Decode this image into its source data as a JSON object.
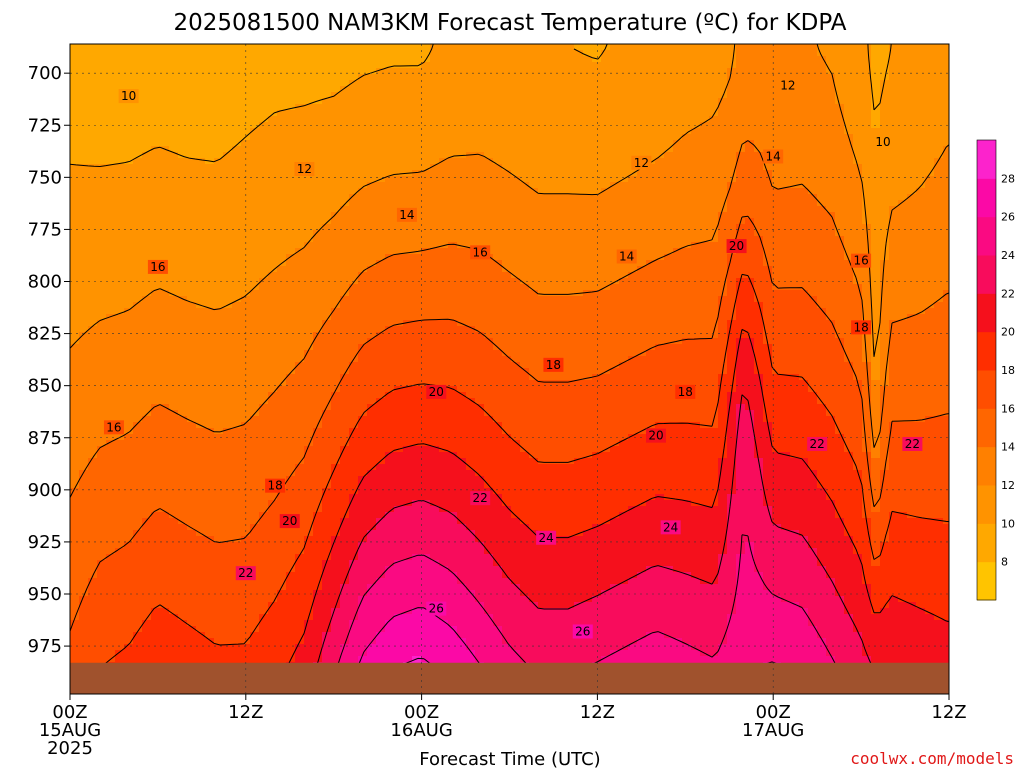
{
  "chart_data": {
    "type": "heatmap",
    "title": "2025081500 NAM3KM Forecast Temperature (ºC) for KDPA",
    "xlabel": "Forecast Time (UTC)",
    "ylabel": "",
    "x_ticks": [
      {
        "hours": 0,
        "lines": [
          "00Z",
          "15AUG",
          "2025"
        ]
      },
      {
        "hours": 12,
        "lines": [
          "12Z"
        ]
      },
      {
        "hours": 24,
        "lines": [
          "00Z",
          "16AUG"
        ]
      },
      {
        "hours": 36,
        "lines": [
          "12Z"
        ]
      },
      {
        "hours": 48,
        "lines": [
          "00Z",
          "17AUG"
        ]
      },
      {
        "hours": 60,
        "lines": [
          "12Z"
        ]
      }
    ],
    "xlim_hours": [
      0,
      60
    ],
    "y_ticks": [
      "700",
      "725",
      "750",
      "775",
      "800",
      "825",
      "850",
      "875",
      "900",
      "925",
      "950",
      "975"
    ],
    "ylim_hPa": [
      686,
      998
    ],
    "grid": "dotted",
    "colorbar": {
      "placement": "right",
      "labels": [
        "8",
        "10",
        "12",
        "14",
        "16",
        "18",
        "20",
        "22",
        "24",
        "26",
        "28"
      ],
      "range": [
        6,
        30
      ],
      "step": 2,
      "colors": [
        "#ffc400",
        "#ffa800",
        "#ff9300",
        "#ff8000",
        "#ff6600",
        "#ff4e00",
        "#ff2e00",
        "#f5101c",
        "#f80c5c",
        "#fa0a82",
        "#fb09a6",
        "#fc23cc"
      ]
    },
    "contour_labels": [
      {
        "value": "10",
        "hours": 4.0,
        "hPa": 711
      },
      {
        "value": "10",
        "hours": 55.5,
        "hPa": 733
      },
      {
        "value": "12",
        "hours": 16.0,
        "hPa": 746
      },
      {
        "value": "12",
        "hours": 39.0,
        "hPa": 743
      },
      {
        "value": "12",
        "hours": 49.0,
        "hPa": 706
      },
      {
        "value": "14",
        "hours": 23.0,
        "hPa": 768
      },
      {
        "value": "14",
        "hours": 38.0,
        "hPa": 788
      },
      {
        "value": "14",
        "hours": 48.0,
        "hPa": 740
      },
      {
        "value": "16",
        "hours": 6.0,
        "hPa": 793
      },
      {
        "value": "16",
        "hours": 28.0,
        "hPa": 786
      },
      {
        "value": "16",
        "hours": 54.0,
        "hPa": 790
      },
      {
        "value": "16",
        "hours": 3.0,
        "hPa": 870
      },
      {
        "value": "18",
        "hours": 33.0,
        "hPa": 840
      },
      {
        "value": "18",
        "hours": 42.0,
        "hPa": 853
      },
      {
        "value": "18",
        "hours": 54.0,
        "hPa": 822
      },
      {
        "value": "18",
        "hours": 14.0,
        "hPa": 898
      },
      {
        "value": "20",
        "hours": 25.0,
        "hPa": 853
      },
      {
        "value": "20",
        "hours": 40.0,
        "hPa": 874
      },
      {
        "value": "20",
        "hours": 45.5,
        "hPa": 783
      },
      {
        "value": "20",
        "hours": 15.0,
        "hPa": 915
      },
      {
        "value": "22",
        "hours": 28.0,
        "hPa": 904
      },
      {
        "value": "22",
        "hours": 51.0,
        "hPa": 878
      },
      {
        "value": "22",
        "hours": 57.5,
        "hPa": 878
      },
      {
        "value": "22",
        "hours": 12.0,
        "hPa": 940
      },
      {
        "value": "24",
        "hours": 32.5,
        "hPa": 923
      },
      {
        "value": "24",
        "hours": 41.0,
        "hPa": 918
      },
      {
        "value": "26",
        "hours": 25.0,
        "hPa": 957
      },
      {
        "value": "26",
        "hours": 35.0,
        "hPa": 968
      }
    ],
    "profile": [
      {
        "hours": 0,
        "surface": 17.0,
        "l700": 9.2,
        "pmin": 815,
        "pmax": 820,
        "a": 0.0
      },
      {
        "hours": 2,
        "surface": 18.5,
        "l700": 9.0,
        "pmin": 825,
        "pmax": 830,
        "a": 0.0
      },
      {
        "hours": 4,
        "surface": 19.0,
        "l700": 9.0,
        "pmin": 840,
        "pmax": 845,
        "a": 0.0
      },
      {
        "hours": 6,
        "surface": 20.0,
        "l700": 9.1,
        "pmin": 790,
        "pmax": 800,
        "a": 0.0
      },
      {
        "hours": 8,
        "surface": 19.5,
        "l700": 9.0,
        "pmin": 800,
        "pmax": 800,
        "a": 0.0
      },
      {
        "hours": 10,
        "surface": 19.0,
        "l700": 9.0,
        "pmin": 830,
        "pmax": 830,
        "a": 0.0
      },
      {
        "hours": 12,
        "surface": 19.0,
        "l700": 9.3,
        "pmin": 840,
        "pmax": 840,
        "a": 0.0
      },
      {
        "hours": 14,
        "surface": 20.0,
        "l700": 9.5,
        "pmin": 820,
        "pmax": 820,
        "a": 0.0
      },
      {
        "hours": 16,
        "surface": 21.5,
        "l700": 9.5,
        "pmin": 800,
        "pmax": 800,
        "a": 0.0
      },
      {
        "hours": 18,
        "surface": 24.5,
        "l700": 9.5,
        "pmin": 815,
        "pmax": 815,
        "a": 0.0
      },
      {
        "hours": 20,
        "surface": 27.5,
        "l700": 9.7,
        "pmin": 830,
        "pmax": 830,
        "a": 0.0
      },
      {
        "hours": 22,
        "surface": 29.0,
        "l700": 9.8,
        "pmin": 830,
        "pmax": 830,
        "a": 0.0
      },
      {
        "hours": 24,
        "surface": 29.5,
        "l700": 9.8,
        "pmin": 825,
        "pmax": 825,
        "a": 0.0
      },
      {
        "hours": 26,
        "surface": 28.5,
        "l700": 10.3,
        "pmin": 830,
        "pmax": 830,
        "a": 0.0
      },
      {
        "hours": 28,
        "surface": 27.0,
        "l700": 10.5,
        "pmin": 830,
        "pmax": 830,
        "a": 0.0
      },
      {
        "hours": 30,
        "surface": 25.5,
        "l700": 10.3,
        "pmin": 825,
        "pmax": 825,
        "a": 0.0
      },
      {
        "hours": 32,
        "surface": 24.5,
        "l700": 10.0,
        "pmin": 830,
        "pmax": 830,
        "a": 0.0
      },
      {
        "hours": 34,
        "surface": 24.5,
        "l700": 10.0,
        "pmin": 835,
        "pmax": 835,
        "a": 0.0
      },
      {
        "hours": 36,
        "surface": 25.0,
        "l700": 9.9,
        "pmin": 835,
        "pmax": 835,
        "a": 0.0
      },
      {
        "hours": 38,
        "surface": 25.5,
        "l700": 10.2,
        "pmin": 830,
        "pmax": 830,
        "a": 0.0
      },
      {
        "hours": 40,
        "surface": 26.0,
        "l700": 10.5,
        "pmin": 825,
        "pmax": 825,
        "a": 0.0
      },
      {
        "hours": 42,
        "surface": 25.5,
        "l700": 11.0,
        "pmin": 835,
        "pmax": 835,
        "a": 0.0
      },
      {
        "hours": 44,
        "surface": 25.0,
        "l700": 11.3,
        "pmin": 820,
        "pmax": 820,
        "a": 0.0
      },
      {
        "hours": 45,
        "surface": 25.5,
        "l700": 11.6,
        "pmin": 800,
        "pmax": 800,
        "a": 0.5
      },
      {
        "hours": 46,
        "surface": 26.0,
        "l700": 12.5,
        "pmin": 780,
        "pmax": 780,
        "a": 1.0
      },
      {
        "hours": 47,
        "surface": 26.5,
        "l700": 12.5,
        "pmin": 800,
        "pmax": 800,
        "a": 0.5
      },
      {
        "hours": 48,
        "surface": 27.0,
        "l700": 12.0,
        "pmin": 820,
        "pmax": 820,
        "a": 0.0
      },
      {
        "hours": 50,
        "surface": 26.5,
        "l700": 12.2,
        "pmin": 830,
        "pmax": 830,
        "a": 0.0
      },
      {
        "hours": 52,
        "surface": 25.0,
        "l700": 11.8,
        "pmin": 830,
        "pmax": 830,
        "a": 0.0
      },
      {
        "hours": 54,
        "surface": 23.5,
        "l700": 10.5,
        "pmin": 820,
        "pmax": 820,
        "a": 0.0
      },
      {
        "hours": 55,
        "surface": 23.0,
        "l700": 9.5,
        "pmin": 840,
        "pmax": 840,
        "a": -0.8
      },
      {
        "hours": 56,
        "surface": 22.5,
        "l700": 10.0,
        "pmin": 830,
        "pmax": 830,
        "a": 0.0
      },
      {
        "hours": 58,
        "surface": 22.0,
        "l700": 10.5,
        "pmin": 830,
        "pmax": 830,
        "a": 0.0
      },
      {
        "hours": 60,
        "surface": 21.5,
        "l700": 11.2,
        "pmin": 820,
        "pmax": 820,
        "a": 0.0
      }
    ],
    "ground": {
      "top_hPa": 983,
      "color": "#a0522d"
    }
  },
  "credit": "coolwx.com/models"
}
